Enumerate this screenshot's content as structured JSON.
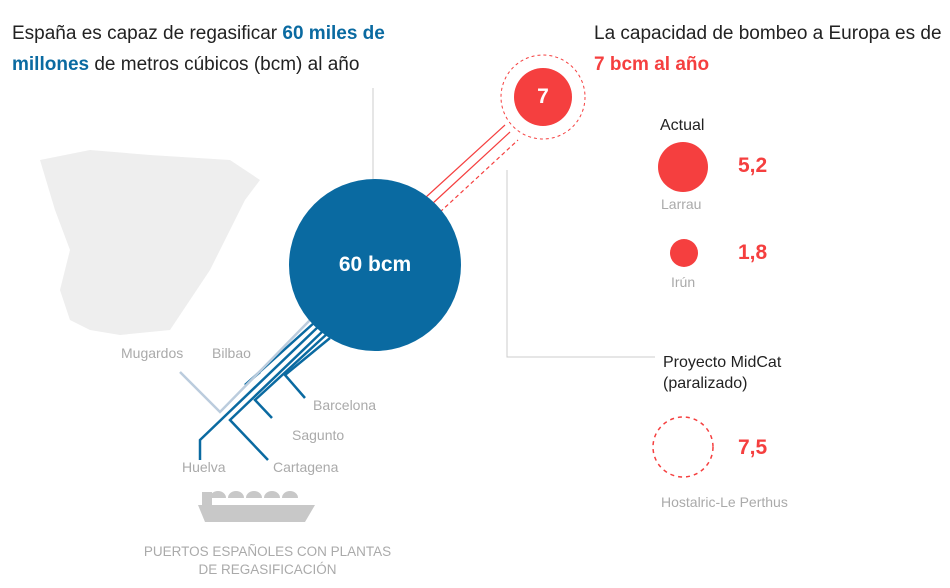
{
  "headline_left": {
    "parts": [
      "España es capaz de regasificar ",
      "60 miles de millones",
      " de metros cúbicos (bcm) al año"
    ]
  },
  "headline_right": {
    "parts": [
      "La capacidad de bombeo a Europa es de ",
      "7 bcm al año"
    ]
  },
  "capacity_circle": {
    "label": "60 bcm"
  },
  "export_circle": {
    "label": "7"
  },
  "current": {
    "title": "Actual",
    "links": [
      {
        "value": "5,2",
        "name": "Larrau"
      },
      {
        "value": "1,8",
        "name": "Irún"
      }
    ]
  },
  "project": {
    "title": "Proyecto MidCat (paralizado)",
    "value": "7,5",
    "name": "Hostalric-Le Perthus"
  },
  "ports": [
    "Mugardos",
    "Bilbao",
    "Barcelona",
    "Sagunto",
    "Huelva",
    "Cartagena"
  ],
  "footer": "PUERTOS ESPAÑOLES CON PLANTAS DE REGASIFICACIÓN"
}
